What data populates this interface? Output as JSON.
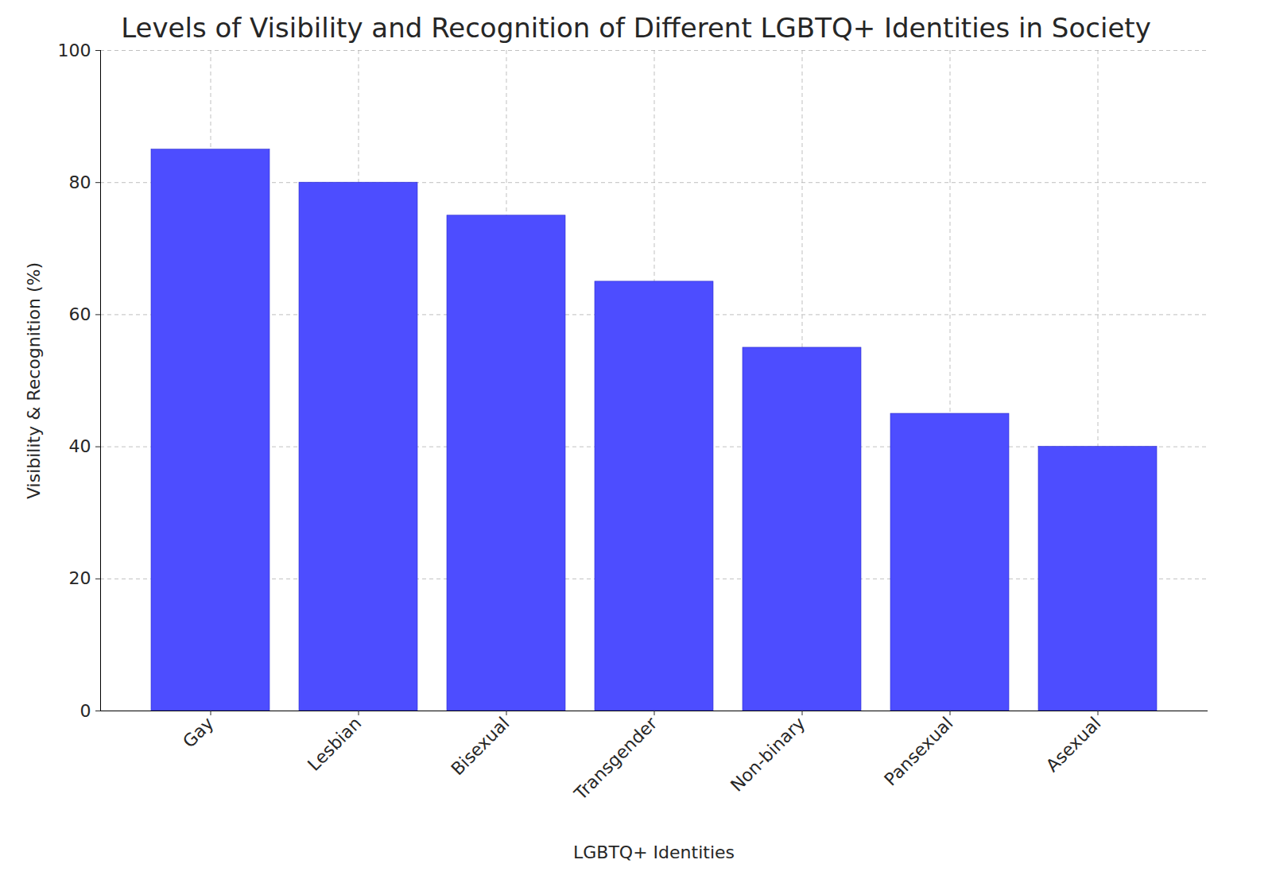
{
  "chart_data": {
    "type": "bar",
    "title": "Levels of Visibility and Recognition of Different LGBTQ+ Identities in Society",
    "x_label": "LGBTQ+ Identities",
    "y_label": "Visibility & Recognition (%)",
    "categories": [
      "Gay",
      "Lesbian",
      "Bisexual",
      "Transgender",
      "Non-binary",
      "Pansexual",
      "Asexual"
    ],
    "values": [
      85,
      80,
      75,
      65,
      55,
      45,
      40
    ],
    "color": "#4d4dff",
    "ylim": [
      0,
      100
    ],
    "yticks": [
      0,
      20,
      40,
      60,
      80,
      100
    ],
    "grid": true
  }
}
